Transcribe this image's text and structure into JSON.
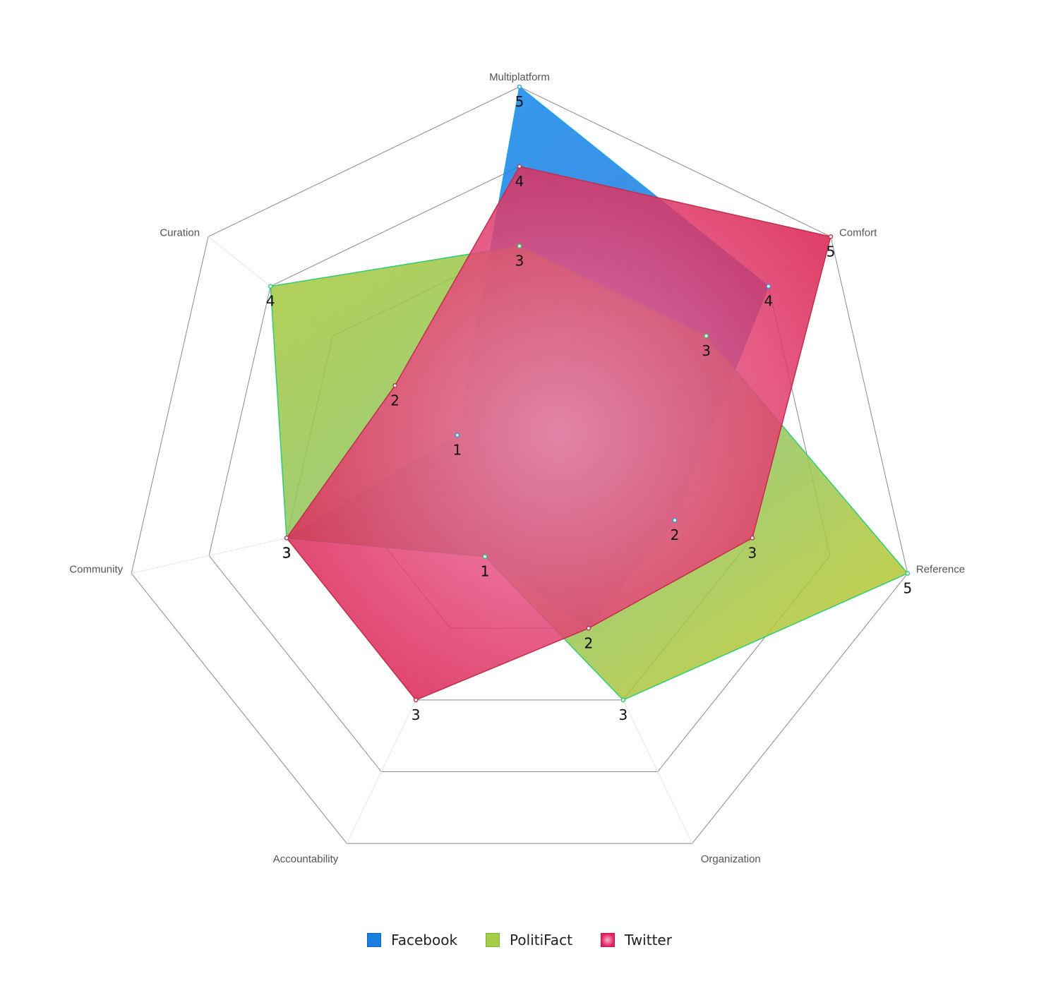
{
  "chart_data": {
    "type": "radar",
    "axes": [
      "Multiplatform",
      "Comfort",
      "Reference",
      "Organization",
      "Accountability",
      "Community",
      "Curation"
    ],
    "range": [
      0,
      5
    ],
    "levels": 5,
    "series": [
      {
        "name": "Facebook",
        "values": [
          5,
          4,
          2,
          2,
          1,
          3,
          1
        ],
        "color": "#0a7de8",
        "stroke": "#1fa3e8"
      },
      {
        "name": "PolitiFact",
        "values": [
          3,
          3,
          5,
          3,
          1,
          3,
          4
        ],
        "color": "#9acd32",
        "stroke": "#2ecc71"
      },
      {
        "name": "Twitter",
        "values": [
          4,
          5,
          3,
          2,
          3,
          3,
          2
        ],
        "color": "#e0245e",
        "stroke": "#c0304a"
      }
    ],
    "legend_position": "bottom",
    "data_labels": true
  }
}
